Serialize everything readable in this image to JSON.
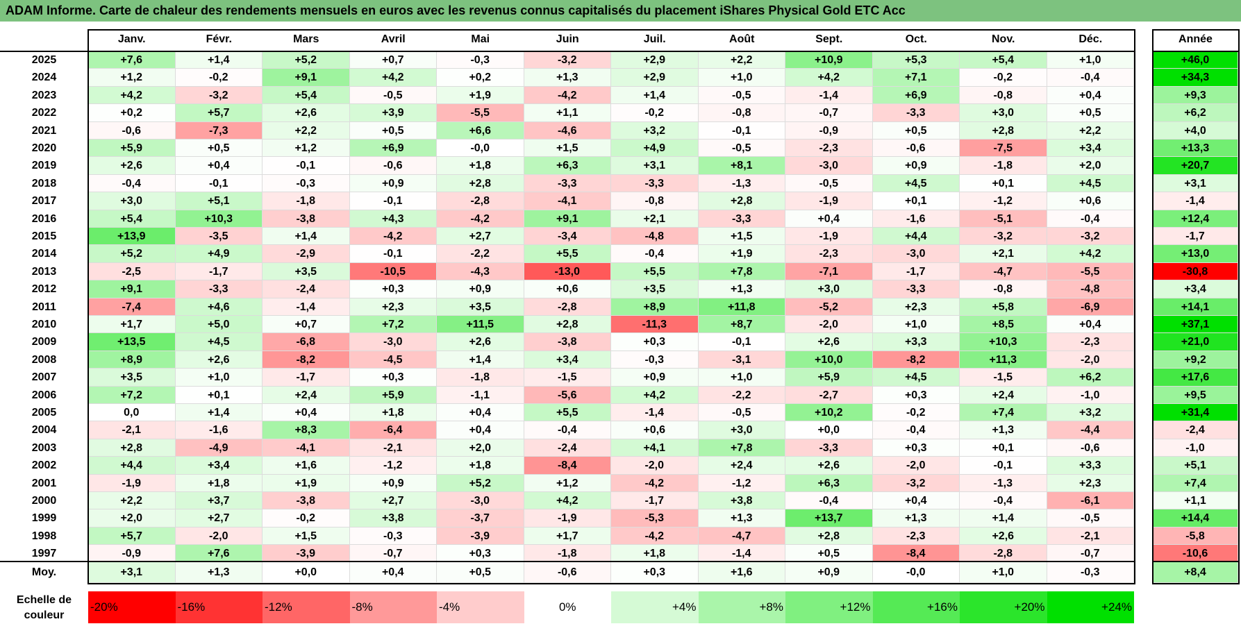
{
  "title": "ADAM Informe. Carte de chaleur des rendements mensuels en euros avec les revenus connus capitalisés du placement iShares Physical Gold ETC Acc",
  "year_header": "Année",
  "avg_label": "Moy.",
  "scale_label": "Echelle de couleur",
  "colors": {
    "title_bg": "#7dc27f",
    "min": "#ff0000",
    "neutral": "#ffffff",
    "max": "#00e000"
  },
  "chart_data": {
    "type": "heatmap",
    "title": "ADAM Informe. Carte de chaleur des rendements mensuels en euros avec les revenus connus capitalisés du placement iShares Physical Gold ETC Acc",
    "columns": [
      "Janv.",
      "Févr.",
      "Mars",
      "Avril",
      "Mai",
      "Juin",
      "Juil.",
      "Août",
      "Sept.",
      "Oct.",
      "Nov.",
      "Déc."
    ],
    "years": [
      "2025",
      "2024",
      "2023",
      "2022",
      "2021",
      "2020",
      "2019",
      "2018",
      "2017",
      "2016",
      "2015",
      "2014",
      "2013",
      "2012",
      "2011",
      "2010",
      "2009",
      "2008",
      "2007",
      "2006",
      "2005",
      "2004",
      "2003",
      "2002",
      "2001",
      "2000",
      "1999",
      "1998",
      "1997"
    ],
    "values": [
      [
        "+7,6",
        "+1,4",
        "+5,2",
        "+0,7",
        "-0,3",
        "-3,2",
        "+2,9",
        "+2,2",
        "+10,9",
        "+5,3",
        "+5,4",
        "+1,0"
      ],
      [
        "+1,2",
        "-0,2",
        "+9,1",
        "+4,2",
        "+0,2",
        "+1,3",
        "+2,9",
        "+1,0",
        "+4,2",
        "+7,1",
        "-0,2",
        "-0,4"
      ],
      [
        "+4,2",
        "-3,2",
        "+5,4",
        "-0,5",
        "+1,9",
        "-4,2",
        "+1,4",
        "-0,5",
        "-1,4",
        "+6,9",
        "-0,8",
        "+0,4"
      ],
      [
        "+0,2",
        "+5,7",
        "+2,6",
        "+3,9",
        "-5,5",
        "+1,1",
        "-0,2",
        "-0,8",
        "-0,7",
        "-3,3",
        "+3,0",
        "+0,5"
      ],
      [
        "-0,6",
        "-7,3",
        "+2,2",
        "+0,5",
        "+6,6",
        "-4,6",
        "+3,2",
        "-0,1",
        "-0,9",
        "+0,5",
        "+2,8",
        "+2,2"
      ],
      [
        "+5,9",
        "+0,5",
        "+1,2",
        "+6,9",
        "-0,0",
        "+1,5",
        "+4,9",
        "-0,5",
        "-2,3",
        "-0,6",
        "-7,5",
        "+3,4"
      ],
      [
        "+2,6",
        "+0,4",
        "-0,1",
        "-0,6",
        "+1,8",
        "+6,3",
        "+3,1",
        "+8,1",
        "-3,0",
        "+0,9",
        "-1,8",
        "+2,0"
      ],
      [
        "-0,4",
        "-0,1",
        "-0,3",
        "+0,9",
        "+2,8",
        "-3,3",
        "-3,3",
        "-1,3",
        "-0,5",
        "+4,5",
        "+0,1",
        "+4,5"
      ],
      [
        "+3,0",
        "+5,1",
        "-1,8",
        "-0,1",
        "-2,8",
        "-4,1",
        "-0,8",
        "+2,8",
        "-1,9",
        "+0,1",
        "-1,2",
        "+0,6"
      ],
      [
        "+5,4",
        "+10,3",
        "-3,8",
        "+4,3",
        "-4,2",
        "+9,1",
        "+2,1",
        "-3,3",
        "+0,4",
        "-1,6",
        "-5,1",
        "-0,4"
      ],
      [
        "+13,9",
        "-3,5",
        "+1,4",
        "-4,2",
        "+2,7",
        "-3,4",
        "-4,8",
        "+1,5",
        "-1,9",
        "+4,4",
        "-3,2",
        "-3,2"
      ],
      [
        "+5,2",
        "+4,9",
        "-2,9",
        "-0,1",
        "-2,2",
        "+5,5",
        "-0,4",
        "+1,9",
        "-2,3",
        "-3,0",
        "+2,1",
        "+4,2"
      ],
      [
        "-2,5",
        "-1,7",
        "+3,5",
        "-10,5",
        "-4,3",
        "-13,0",
        "+5,5",
        "+7,8",
        "-7,1",
        "-1,7",
        "-4,7",
        "-5,5"
      ],
      [
        "+9,1",
        "-3,3",
        "-2,4",
        "+0,3",
        "+0,9",
        "+0,6",
        "+3,5",
        "+1,3",
        "+3,0",
        "-3,3",
        "-0,8",
        "-4,8"
      ],
      [
        "-7,4",
        "+4,6",
        "-1,4",
        "+2,3",
        "+3,5",
        "-2,8",
        "+8,9",
        "+11,8",
        "-5,2",
        "+2,3",
        "+5,8",
        "-6,9"
      ],
      [
        "+1,7",
        "+5,0",
        "+0,7",
        "+7,2",
        "+11,5",
        "+2,8",
        "-11,3",
        "+8,7",
        "-2,0",
        "+1,0",
        "+8,5",
        "+0,4"
      ],
      [
        "+13,5",
        "+4,5",
        "-6,8",
        "-3,0",
        "+2,6",
        "-3,8",
        "+0,3",
        "-0,1",
        "+2,6",
        "+3,3",
        "+10,3",
        "-2,3"
      ],
      [
        "+8,9",
        "+2,6",
        "-8,2",
        "-4,5",
        "+1,4",
        "+3,4",
        "-0,3",
        "-3,1",
        "+10,0",
        "-8,2",
        "+11,3",
        "-2,0"
      ],
      [
        "+3,5",
        "+1,0",
        "-1,7",
        "+0,3",
        "-1,8",
        "-1,5",
        "+0,9",
        "+1,0",
        "+5,9",
        "+4,5",
        "-1,5",
        "+6,2"
      ],
      [
        "+7,2",
        "+0,1",
        "+2,4",
        "+5,9",
        "-1,1",
        "-5,6",
        "+4,2",
        "-2,2",
        "-2,7",
        "+0,3",
        "+2,4",
        "-1,0"
      ],
      [
        "0,0",
        "+1,4",
        "+0,4",
        "+1,8",
        "+0,4",
        "+5,5",
        "-1,4",
        "-0,5",
        "+10,2",
        "-0,2",
        "+7,4",
        "+3,2"
      ],
      [
        "-2,1",
        "-1,6",
        "+8,3",
        "-6,4",
        "+0,4",
        "-0,4",
        "+0,6",
        "+3,0",
        "+0,0",
        "-0,4",
        "+1,3",
        "-4,4"
      ],
      [
        "+2,8",
        "-4,9",
        "-4,1",
        "-2,1",
        "+2,0",
        "-2,4",
        "+4,1",
        "+7,8",
        "-3,3",
        "+0,3",
        "+0,1",
        "-0,6"
      ],
      [
        "+4,4",
        "+3,4",
        "+1,6",
        "-1,2",
        "+1,8",
        "-8,4",
        "-2,0",
        "+2,4",
        "+2,6",
        "-2,0",
        "-0,1",
        "+3,3"
      ],
      [
        "-1,9",
        "+1,8",
        "+1,9",
        "+0,9",
        "+5,2",
        "+1,2",
        "-4,2",
        "-1,2",
        "+6,3",
        "-3,2",
        "-1,3",
        "+2,3"
      ],
      [
        "+2,2",
        "+3,7",
        "-3,8",
        "+2,7",
        "-3,0",
        "+4,2",
        "-1,7",
        "+3,8",
        "-0,4",
        "+0,4",
        "-0,4",
        "-6,1"
      ],
      [
        "+2,0",
        "+2,7",
        "-0,2",
        "+3,8",
        "-3,7",
        "-1,9",
        "-5,3",
        "+1,3",
        "+13,7",
        "+1,3",
        "+1,4",
        "-0,5"
      ],
      [
        "+5,7",
        "-2,0",
        "+1,5",
        "-0,3",
        "-3,9",
        "+1,7",
        "-4,2",
        "-4,7",
        "+2,8",
        "-2,3",
        "+2,6",
        "-2,1"
      ],
      [
        "-0,9",
        "+7,6",
        "-3,9",
        "-0,7",
        "+0,3",
        "-1,8",
        "+1,8",
        "-1,4",
        "+0,5",
        "-8,4",
        "-2,8",
        "-0,7"
      ]
    ],
    "annual": [
      "+46,0",
      "+34,3",
      "+9,3",
      "+6,2",
      "+4,0",
      "+13,3",
      "+20,7",
      "+3,1",
      "-1,4",
      "+12,4",
      "-1,7",
      "+13,0",
      "-30,8",
      "+3,4",
      "+14,1",
      "+37,1",
      "+21,0",
      "+9,2",
      "+17,6",
      "+9,5",
      "+31,4",
      "-2,4",
      "-1,0",
      "+5,1",
      "+7,4",
      "+1,1",
      "+14,4",
      "-5,8",
      "-10,6"
    ],
    "averages": [
      "+3,1",
      "+1,3",
      "+0,0",
      "+0,4",
      "+0,5",
      "-0,6",
      "+0,3",
      "+1,6",
      "+0,9",
      "-0,0",
      "+1,0",
      "-0,3"
    ],
    "annual_average": "+8,4",
    "scale": [
      "-20%",
      "-16%",
      "-12%",
      "-8%",
      "-4%",
      "0%",
      "+4%",
      "+8%",
      "+12%",
      "+16%",
      "+20%",
      "+24%"
    ]
  }
}
